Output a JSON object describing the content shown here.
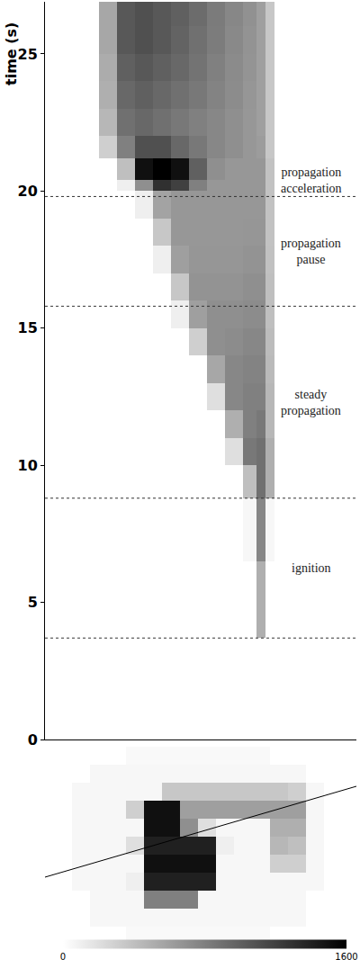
{
  "chart_data": [
    {
      "type": "heatmap",
      "ylabel": "time (s)",
      "ylim": [
        0,
        26.9
      ],
      "yticks": [
        0,
        5,
        10,
        15,
        20,
        25
      ],
      "xlim": [
        0,
        346
      ],
      "tick_labels": "y",
      "x_edges": [
        0,
        60,
        80,
        100,
        120,
        140,
        160,
        180,
        200,
        220,
        235,
        245,
        255,
        346
      ],
      "y_edges": [
        0,
        3.7,
        6.5,
        8.8,
        10,
        11,
        12,
        13,
        14,
        15,
        16,
        17,
        18,
        19,
        20,
        20.4,
        21.2,
        22,
        23,
        24,
        25,
        26,
        26.9
      ],
      "z": [
        [
          0,
          0,
          0,
          0,
          0,
          0,
          0,
          0,
          0,
          0,
          0,
          0,
          0
        ],
        [
          0,
          0,
          0,
          0,
          0,
          0,
          0,
          0,
          0,
          0,
          500,
          0,
          0
        ],
        [
          0,
          0,
          0,
          0,
          0,
          0,
          0,
          0,
          0,
          50,
          750,
          50,
          0
        ],
        [
          0,
          0,
          0,
          0,
          0,
          0,
          0,
          0,
          0,
          400,
          900,
          500,
          0
        ],
        [
          0,
          0,
          0,
          0,
          0,
          0,
          0,
          0,
          200,
          850,
          900,
          500,
          0
        ],
        [
          0,
          0,
          0,
          0,
          0,
          0,
          0,
          0,
          500,
          800,
          850,
          450,
          0
        ],
        [
          0,
          0,
          0,
          0,
          0,
          0,
          0,
          200,
          750,
          800,
          800,
          450,
          0
        ],
        [
          0,
          0,
          0,
          0,
          0,
          0,
          0,
          550,
          750,
          780,
          780,
          430,
          0
        ],
        [
          0,
          0,
          0,
          0,
          0,
          0,
          300,
          700,
          720,
          750,
          750,
          420,
          0
        ],
        [
          0,
          0,
          0,
          0,
          0,
          100,
          600,
          700,
          700,
          720,
          720,
          400,
          0
        ],
        [
          0,
          0,
          0,
          0,
          0,
          350,
          680,
          680,
          680,
          700,
          700,
          400,
          0
        ],
        [
          0,
          0,
          0,
          0,
          100,
          600,
          660,
          660,
          660,
          680,
          680,
          390,
          0
        ],
        [
          0,
          0,
          0,
          0,
          350,
          650,
          650,
          650,
          650,
          660,
          660,
          380,
          0
        ],
        [
          0,
          0,
          0,
          100,
          580,
          650,
          650,
          650,
          650,
          650,
          650,
          380,
          0
        ],
        [
          0,
          0,
          100,
          700,
          1300,
          1200,
          800,
          650,
          650,
          650,
          650,
          380,
          0
        ],
        [
          0,
          0,
          400,
          1500,
          1600,
          1500,
          1000,
          700,
          650,
          650,
          650,
          380,
          0
        ],
        [
          0,
          300,
          800,
          1100,
          1100,
          950,
          850,
          750,
          700,
          650,
          620,
          350,
          0
        ],
        [
          0,
          450,
          900,
          950,
          900,
          850,
          800,
          750,
          700,
          650,
          600,
          350,
          0
        ],
        [
          0,
          500,
          950,
          1000,
          950,
          900,
          850,
          780,
          720,
          660,
          600,
          350,
          0
        ],
        [
          0,
          520,
          1000,
          1050,
          1000,
          950,
          880,
          800,
          730,
          670,
          600,
          350,
          0
        ],
        [
          0,
          550,
          1050,
          1100,
          1050,
          980,
          900,
          820,
          740,
          680,
          600,
          350,
          0
        ],
        [
          0,
          550,
          1050,
          1100,
          1050,
          1000,
          920,
          830,
          750,
          690,
          600,
          350,
          0
        ]
      ],
      "phases": [
        {
          "label": "ignition",
          "start": 3.7,
          "end": 8.8
        },
        {
          "label": "steady propagation",
          "start": 8.8,
          "end": 15.8
        },
        {
          "label": "propagation pause",
          "start": 15.8,
          "end": 19.8
        },
        {
          "label": "propagation acceleration",
          "start": 19.8,
          "end": 21.0
        }
      ]
    },
    {
      "type": "heatmap",
      "xlim": [
        -10,
        336
      ],
      "ylim": [
        215,
        0
      ],
      "tick_labels": false,
      "x_edges": [
        0,
        20,
        40,
        60,
        80,
        100,
        120,
        140,
        160,
        180,
        200,
        220,
        240,
        260,
        280,
        300,
        320
      ],
      "y_edges": [
        0,
        20,
        40,
        60,
        80,
        100,
        120,
        140,
        160,
        180,
        200,
        215
      ],
      "z": [
        [
          0,
          0,
          0,
          0,
          40,
          40,
          40,
          40,
          40,
          40,
          40,
          40,
          0,
          0,
          0,
          0
        ],
        [
          0,
          0,
          50,
          50,
          50,
          50,
          50,
          50,
          50,
          50,
          50,
          50,
          50,
          50,
          0,
          0
        ],
        [
          0,
          50,
          50,
          50,
          50,
          50,
          350,
          350,
          350,
          350,
          350,
          350,
          350,
          300,
          50,
          0
        ],
        [
          0,
          50,
          50,
          50,
          300,
          1500,
          1500,
          600,
          600,
          600,
          600,
          600,
          600,
          600,
          50,
          0
        ],
        [
          0,
          50,
          50,
          50,
          50,
          1500,
          1500,
          700,
          200,
          50,
          50,
          50,
          500,
          500,
          50,
          0
        ],
        [
          0,
          50,
          50,
          50,
          200,
          1400,
          1400,
          1400,
          1400,
          100,
          50,
          50,
          450,
          400,
          50,
          0
        ],
        [
          0,
          50,
          50,
          50,
          50,
          1500,
          1500,
          1500,
          1500,
          50,
          50,
          50,
          300,
          300,
          50,
          0
        ],
        [
          0,
          50,
          50,
          50,
          100,
          1400,
          1400,
          1400,
          1400,
          50,
          50,
          50,
          50,
          50,
          50,
          0
        ],
        [
          0,
          0,
          50,
          50,
          50,
          800,
          800,
          800,
          50,
          50,
          50,
          50,
          50,
          50,
          0,
          0
        ],
        [
          0,
          0,
          50,
          50,
          50,
          50,
          50,
          50,
          50,
          50,
          50,
          50,
          50,
          50,
          0,
          0
        ],
        [
          0,
          0,
          0,
          0,
          40,
          40,
          40,
          40,
          40,
          40,
          40,
          40,
          0,
          0,
          0,
          0
        ]
      ],
      "slice_line": {
        "x": [
          -10,
          336
        ],
        "y": [
          145,
          44
        ]
      },
      "colorbar": {
        "range": [
          0,
          1600
        ],
        "ticks": [
          0,
          1600
        ]
      }
    }
  ]
}
